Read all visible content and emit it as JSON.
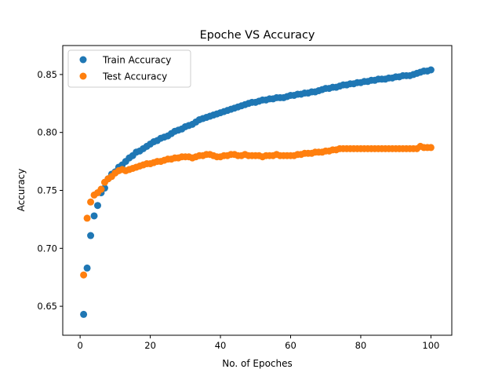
{
  "chart_data": {
    "type": "scatter",
    "title": "Epoche VS Accuracy",
    "xlabel": "No. of Epoches",
    "ylabel": "Accuracy",
    "xlim": [
      -4.95,
      105.95
    ],
    "ylim": [
      0.625,
      0.875
    ],
    "xticks": [
      0,
      20,
      40,
      60,
      80,
      100
    ],
    "yticks": [
      0.65,
      0.7,
      0.75,
      0.8,
      0.85
    ],
    "xtick_labels": [
      "0",
      "20",
      "40",
      "60",
      "80",
      "100"
    ],
    "ytick_labels": [
      "0.65",
      "0.70",
      "0.75",
      "0.80",
      "0.85"
    ],
    "grid": false,
    "legend_position": "upper-left",
    "x": [
      1,
      2,
      3,
      4,
      5,
      6,
      7,
      8,
      9,
      10,
      11,
      12,
      13,
      14,
      15,
      16,
      17,
      18,
      19,
      20,
      21,
      22,
      23,
      24,
      25,
      26,
      27,
      28,
      29,
      30,
      31,
      32,
      33,
      34,
      35,
      36,
      37,
      38,
      39,
      40,
      41,
      42,
      43,
      44,
      45,
      46,
      47,
      48,
      49,
      50,
      51,
      52,
      53,
      54,
      55,
      56,
      57,
      58,
      59,
      60,
      61,
      62,
      63,
      64,
      65,
      66,
      67,
      68,
      69,
      70,
      71,
      72,
      73,
      74,
      75,
      76,
      77,
      78,
      79,
      80,
      81,
      82,
      83,
      84,
      85,
      86,
      87,
      88,
      89,
      90,
      91,
      92,
      93,
      94,
      95,
      96,
      97,
      98,
      99,
      100
    ],
    "series": [
      {
        "name": "Train Accuracy",
        "color": "#1f77b4",
        "values": [
          0.643,
          0.683,
          0.711,
          0.728,
          0.737,
          0.748,
          0.752,
          0.76,
          0.764,
          0.766,
          0.77,
          0.772,
          0.775,
          0.778,
          0.78,
          0.783,
          0.784,
          0.786,
          0.788,
          0.79,
          0.792,
          0.793,
          0.795,
          0.796,
          0.797,
          0.799,
          0.801,
          0.802,
          0.803,
          0.805,
          0.806,
          0.807,
          0.809,
          0.811,
          0.812,
          0.813,
          0.814,
          0.815,
          0.816,
          0.817,
          0.818,
          0.819,
          0.82,
          0.821,
          0.822,
          0.823,
          0.824,
          0.825,
          0.826,
          0.826,
          0.827,
          0.828,
          0.828,
          0.829,
          0.829,
          0.83,
          0.83,
          0.83,
          0.831,
          0.832,
          0.832,
          0.833,
          0.833,
          0.834,
          0.834,
          0.835,
          0.835,
          0.836,
          0.837,
          0.838,
          0.838,
          0.839,
          0.839,
          0.84,
          0.841,
          0.841,
          0.842,
          0.842,
          0.843,
          0.843,
          0.844,
          0.844,
          0.845,
          0.845,
          0.846,
          0.846,
          0.846,
          0.847,
          0.847,
          0.848,
          0.848,
          0.849,
          0.849,
          0.849,
          0.85,
          0.851,
          0.852,
          0.853,
          0.853,
          0.854
        ]
      },
      {
        "name": "Test Accuracy",
        "color": "#ff7f0e",
        "values": [
          0.677,
          0.726,
          0.74,
          0.746,
          0.748,
          0.751,
          0.757,
          0.76,
          0.762,
          0.765,
          0.767,
          0.768,
          0.767,
          0.768,
          0.769,
          0.77,
          0.771,
          0.772,
          0.773,
          0.773,
          0.774,
          0.775,
          0.775,
          0.776,
          0.777,
          0.777,
          0.778,
          0.778,
          0.779,
          0.779,
          0.779,
          0.778,
          0.779,
          0.78,
          0.78,
          0.781,
          0.781,
          0.78,
          0.779,
          0.779,
          0.78,
          0.78,
          0.781,
          0.781,
          0.78,
          0.78,
          0.781,
          0.78,
          0.78,
          0.78,
          0.78,
          0.779,
          0.78,
          0.78,
          0.78,
          0.781,
          0.78,
          0.78,
          0.78,
          0.78,
          0.78,
          0.781,
          0.781,
          0.782,
          0.782,
          0.782,
          0.783,
          0.783,
          0.783,
          0.784,
          0.784,
          0.785,
          0.785,
          0.786,
          0.786,
          0.786,
          0.786,
          0.786,
          0.786,
          0.786,
          0.786,
          0.786,
          0.786,
          0.786,
          0.786,
          0.786,
          0.786,
          0.786,
          0.786,
          0.786,
          0.786,
          0.786,
          0.786,
          0.786,
          0.786,
          0.786,
          0.788,
          0.787,
          0.787,
          0.787
        ]
      }
    ]
  }
}
